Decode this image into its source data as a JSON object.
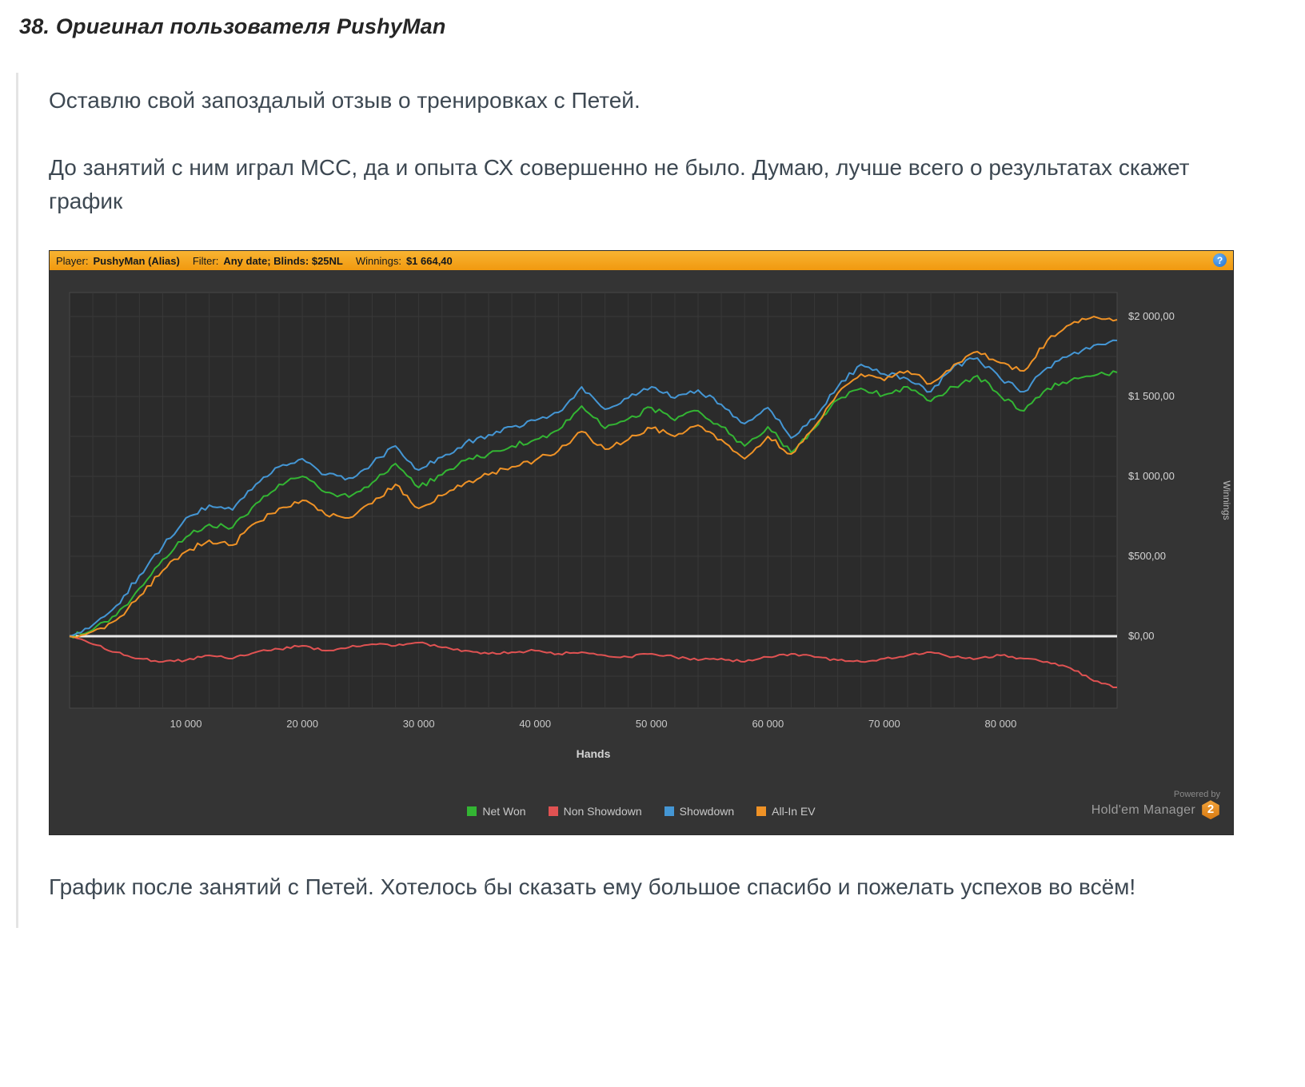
{
  "post": {
    "title": "38. Оригинал пользователя PushyMan",
    "paragraph1": "Оставлю свой запоздалый отзыв о тренировках с Петей.",
    "paragraph2": "До занятий с ним играл МСС, да и опыта СХ совершенно не было. Думаю, лучше всего о результатах скажет график",
    "closing": "График после занятий с Петей. Хотелось бы сказать ему большое спасибо и пожелать успехов во всём!"
  },
  "chart_header": {
    "player_label": "Player:",
    "player_value": "PushyMan (Alias)",
    "filter_label": "Filter:",
    "filter_value": "Any date; Blinds: $25NL",
    "winnings_label": "Winnings:",
    "winnings_value": "$1 664,40",
    "info_icon": "?"
  },
  "branding": {
    "powered_by": "Powered by",
    "brand": "Hold'em Manager",
    "logo_digit": "2"
  },
  "chart_data": {
    "type": "line",
    "title": "",
    "xlabel": "Hands",
    "ylabel": "Winnings",
    "xlim": [
      0,
      90000
    ],
    "ylim": [
      -450,
      2150
    ],
    "grid": true,
    "legend_position": "bottom",
    "zero_line": 0,
    "colors": {
      "background": "#343434",
      "plot": "#2b2b2b",
      "grid": "#383838",
      "zero_line": "#ebebeb",
      "axis_text": "#c9c9c9",
      "header_bar": "#f4a41f"
    },
    "x_ticks": [
      {
        "v": 10000,
        "label": "10 000"
      },
      {
        "v": 20000,
        "label": "20 000"
      },
      {
        "v": 30000,
        "label": "30 000"
      },
      {
        "v": 40000,
        "label": "40 000"
      },
      {
        "v": 50000,
        "label": "50 000"
      },
      {
        "v": 60000,
        "label": "60 000"
      },
      {
        "v": 70000,
        "label": "70 000"
      },
      {
        "v": 80000,
        "label": "80 000"
      }
    ],
    "y_ticks": [
      {
        "v": 0,
        "label": "$0,00"
      },
      {
        "v": 500,
        "label": "$500,00"
      },
      {
        "v": 1000,
        "label": "$1 000,00"
      },
      {
        "v": 1500,
        "label": "$1 500,00"
      },
      {
        "v": 2000,
        "label": "$2 000,00"
      }
    ],
    "x": [
      0,
      2000,
      4000,
      6000,
      8000,
      10000,
      12000,
      14000,
      16000,
      18000,
      20000,
      22000,
      24000,
      26000,
      28000,
      30000,
      32000,
      34000,
      36000,
      38000,
      40000,
      42000,
      44000,
      46000,
      48000,
      50000,
      52000,
      54000,
      56000,
      58000,
      60000,
      62000,
      64000,
      66000,
      68000,
      70000,
      72000,
      74000,
      76000,
      78000,
      80000,
      82000,
      84000,
      86000,
      88000,
      90000
    ],
    "series": [
      {
        "name": "Net Won",
        "color": "#33b533",
        "values": [
          0,
          40,
          130,
          300,
          480,
          620,
          700,
          680,
          830,
          950,
          1000,
          900,
          870,
          960,
          1080,
          930,
          1010,
          1100,
          1140,
          1190,
          1230,
          1290,
          1440,
          1300,
          1360,
          1430,
          1350,
          1410,
          1310,
          1190,
          1310,
          1150,
          1300,
          1480,
          1550,
          1510,
          1560,
          1470,
          1560,
          1630,
          1500,
          1410,
          1550,
          1600,
          1630,
          1650
        ]
      },
      {
        "name": "Non Showdown",
        "color": "#e05252",
        "values": [
          0,
          -50,
          -100,
          -140,
          -160,
          -150,
          -120,
          -140,
          -100,
          -80,
          -60,
          -90,
          -70,
          -50,
          -60,
          -40,
          -70,
          -90,
          -110,
          -100,
          -90,
          -110,
          -100,
          -120,
          -130,
          -110,
          -130,
          -150,
          -140,
          -160,
          -130,
          -110,
          -130,
          -150,
          -160,
          -140,
          -120,
          -100,
          -130,
          -140,
          -120,
          -140,
          -160,
          -200,
          -280,
          -320
        ]
      },
      {
        "name": "Showdown",
        "color": "#4496d4",
        "values": [
          0,
          70,
          190,
          380,
          560,
          740,
          820,
          790,
          950,
          1060,
          1110,
          1010,
          990,
          1080,
          1190,
          1040,
          1120,
          1210,
          1260,
          1310,
          1350,
          1400,
          1560,
          1420,
          1490,
          1560,
          1490,
          1540,
          1450,
          1330,
          1430,
          1240,
          1360,
          1560,
          1700,
          1640,
          1610,
          1530,
          1690,
          1740,
          1610,
          1530,
          1680,
          1760,
          1820,
          1850
        ]
      },
      {
        "name": "All-In EV",
        "color": "#ef9226",
        "values": [
          0,
          30,
          100,
          250,
          410,
          530,
          600,
          570,
          710,
          800,
          850,
          760,
          740,
          830,
          950,
          800,
          880,
          960,
          1010,
          1060,
          1100,
          1160,
          1280,
          1170,
          1230,
          1300,
          1250,
          1320,
          1230,
          1110,
          1250,
          1140,
          1310,
          1520,
          1640,
          1600,
          1660,
          1580,
          1700,
          1780,
          1710,
          1660,
          1850,
          1950,
          2000,
          1980
        ]
      }
    ],
    "legend": [
      "Net Won",
      "Non Showdown",
      "Showdown",
      "All-In EV"
    ]
  }
}
